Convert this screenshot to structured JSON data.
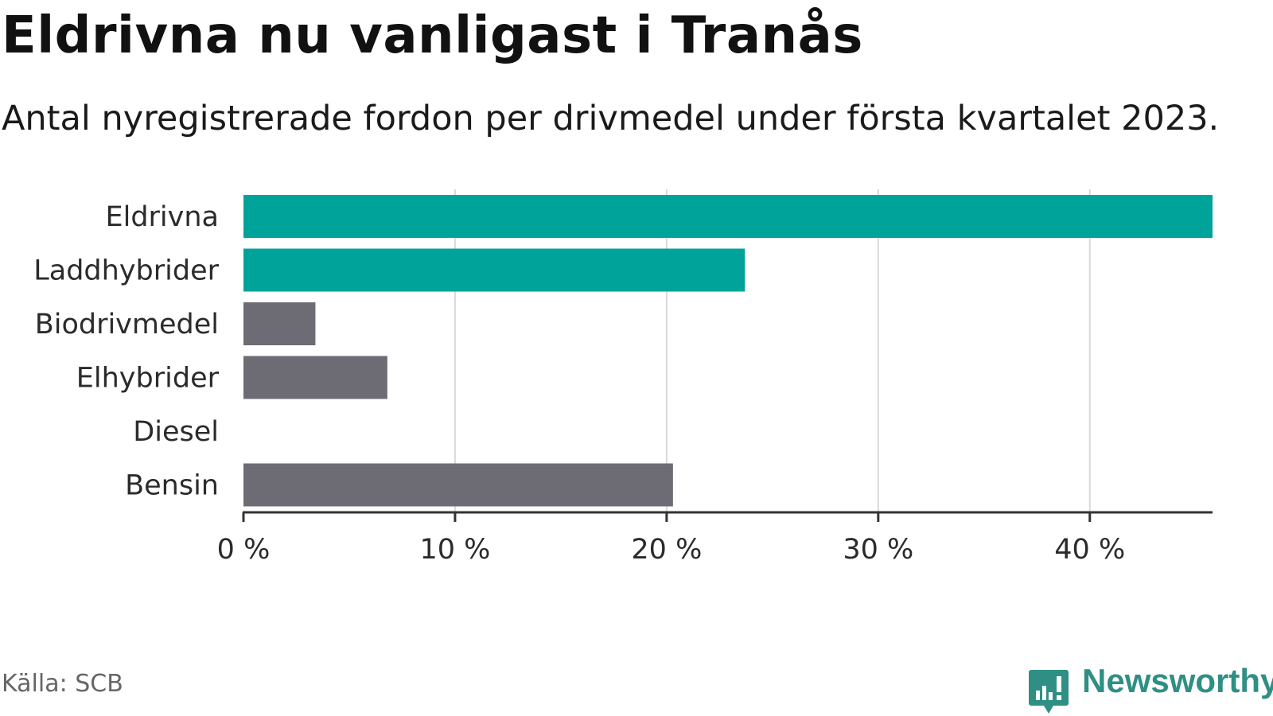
{
  "title": "Eldrivna nu vanligast i Tranås",
  "subtitle": "Antal nyregistrerade fordon per drivmedel under första kvartalet 2023.",
  "source": "Källa: SCB",
  "brand": {
    "name": "Newsworthy",
    "icon": "newsworthy-logo-icon",
    "color": "#2f8f84"
  },
  "colors": {
    "highlight": "#00a39a",
    "muted": "#6d6c74",
    "grid": "#d9d9d9",
    "axis": "#333333"
  },
  "chart_data": {
    "type": "bar",
    "orientation": "horizontal",
    "title": "Eldrivna nu vanligast i Tranås",
    "subtitle": "Antal nyregistrerade fordon per drivmedel under första kvartalet 2023.",
    "categories": [
      "Eldrivna",
      "Laddhybrider",
      "Biodrivmedel",
      "Elhybrider",
      "Diesel",
      "Bensin"
    ],
    "values": [
      45.8,
      23.7,
      3.4,
      6.8,
      0,
      20.3
    ],
    "highlighted": [
      true,
      true,
      false,
      false,
      false,
      false
    ],
    "unit": "%",
    "xlim": [
      0,
      45.8
    ],
    "ticks": [
      0,
      10,
      20,
      30,
      40
    ],
    "tick_labels": [
      "0 %",
      "10 %",
      "20 %",
      "30 %",
      "40 %"
    ],
    "grid": true,
    "legend": "none"
  }
}
